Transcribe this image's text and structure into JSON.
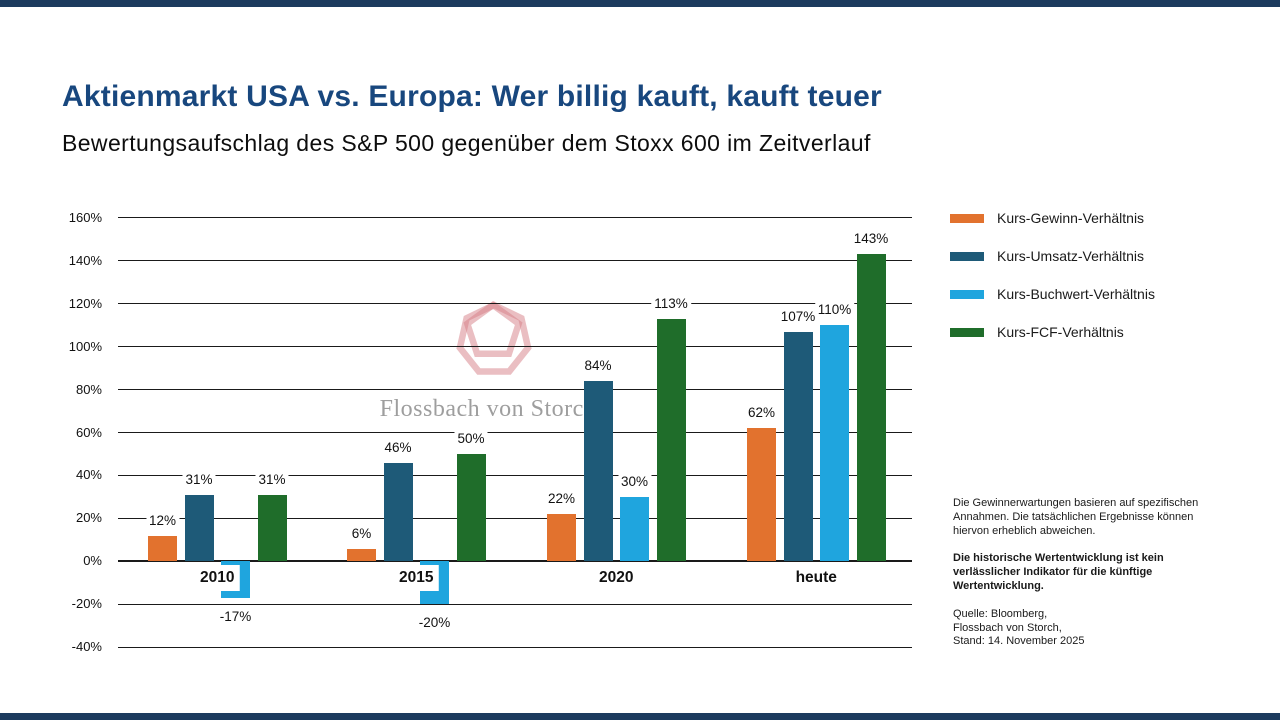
{
  "slide": {
    "title": "Aktienmarkt USA vs. Europa: Wer billig kauft, kauft teuer",
    "subtitle": "Bewertungsaufschlag des S&P 500 gegenüber dem Stoxx 600 im Zeitverlauf",
    "title_color": "#18477E",
    "edge_rule_color": "#1C3B5E"
  },
  "watermark": {
    "text": "Flossbach von Storch",
    "logo_icon": "heptagon-ribbon-logo",
    "logo_color": "#DD8E97",
    "text_color": "#9E9E9E"
  },
  "chart_data": {
    "type": "bar",
    "title": "Bewertungsaufschlag des S&P 500 gegenüber dem Stoxx 600 im Zeitverlauf",
    "categories": [
      "2010",
      "2015",
      "2020",
      "heute"
    ],
    "series": [
      {
        "name": "Kurs-Gewinn-Verhältnis",
        "color": "#E2722E",
        "values": [
          12,
          6,
          22,
          62
        ]
      },
      {
        "name": "Kurs-Umsatz-Verhältnis",
        "color": "#1E5A78",
        "values": [
          31,
          46,
          84,
          107
        ]
      },
      {
        "name": "Kurs-Buchwert-Verhältnis",
        "color": "#1FA5DE",
        "values": [
          -17,
          -20,
          30,
          110
        ]
      },
      {
        "name": "Kurs-FCF-Verhältnis",
        "color": "#1F6D2A",
        "values": [
          31,
          50,
          113,
          143
        ]
      }
    ],
    "value_suffix": "%",
    "ylim": [
      -40,
      160
    ],
    "ytick_step": 20,
    "ytick_labels": [
      "160%",
      "140%",
      "120%",
      "100%",
      "80%",
      "60%",
      "40%",
      "20%",
      "0%",
      "-20%",
      "-40%"
    ],
    "grid": true,
    "legend_position": "right",
    "data_labels": true
  },
  "disclaimer": {
    "para1": "Die Gewinnerwartungen basieren auf spezifischen Annahmen. Die tatsächlichen Ergebnisse können hiervon erheblich abweichen.",
    "para2_bold": "Die historische Wertentwicklung ist kein verlässlicher Indikator für die künftige Wertentwicklung.",
    "source_lines": [
      "Quelle: Bloomberg,",
      "Flossbach von Storch,",
      "Stand: 14. November 2025"
    ]
  }
}
